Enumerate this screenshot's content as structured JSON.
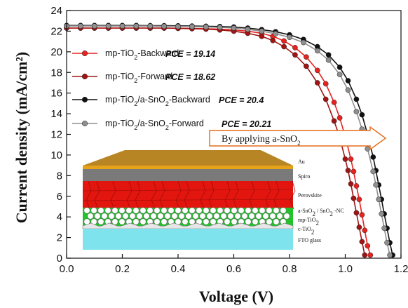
{
  "chart_data": {
    "type": "line",
    "xlabel": "Voltage (V)",
    "ylabel": "Current density (mA/cm²)",
    "xlim": [
      0.0,
      1.2
    ],
    "ylim": [
      0,
      24
    ],
    "x_ticks": [
      "0.0",
      "0.2",
      "0.4",
      "0.6",
      "0.8",
      "1.0",
      "1.2"
    ],
    "y_ticks": [
      "0",
      "2",
      "4",
      "6",
      "8",
      "10",
      "12",
      "14",
      "16",
      "18",
      "20",
      "22",
      "24"
    ],
    "legend_position": "upper-left",
    "series": [
      {
        "name": "mp-TiO2-Backward",
        "pce": "PCE = 19.14",
        "color": "#e8231f",
        "x": [
          0.0,
          0.05,
          0.1,
          0.15,
          0.2,
          0.25,
          0.3,
          0.35,
          0.4,
          0.45,
          0.5,
          0.55,
          0.6,
          0.65,
          0.7,
          0.74,
          0.78,
          0.82,
          0.86,
          0.9,
          0.93,
          0.96,
          0.98,
          1.0,
          1.02,
          1.03,
          1.04,
          1.05,
          1.06,
          1.07,
          1.08,
          1.09
        ],
        "y": [
          22.3,
          22.3,
          22.3,
          22.3,
          22.3,
          22.3,
          22.3,
          22.3,
          22.28,
          22.26,
          22.24,
          22.2,
          22.12,
          22.0,
          21.8,
          21.5,
          21.05,
          20.4,
          19.5,
          18.2,
          16.9,
          15.1,
          13.6,
          11.8,
          9.6,
          8.4,
          7.0,
          5.7,
          4.2,
          2.7,
          1.2,
          0.3
        ]
      },
      {
        "name": "mp-TiO2-Forward",
        "pce": "PCE = 18.62",
        "color": "#a01414",
        "x": [
          0.0,
          0.05,
          0.1,
          0.15,
          0.2,
          0.25,
          0.3,
          0.35,
          0.4,
          0.45,
          0.5,
          0.55,
          0.6,
          0.65,
          0.7,
          0.74,
          0.78,
          0.82,
          0.86,
          0.9,
          0.93,
          0.96,
          0.98,
          1.0,
          1.01,
          1.02,
          1.03,
          1.04,
          1.05,
          1.06,
          1.07
        ],
        "y": [
          22.3,
          22.3,
          22.3,
          22.3,
          22.3,
          22.3,
          22.3,
          22.3,
          22.27,
          22.24,
          22.2,
          22.12,
          22.0,
          21.8,
          21.5,
          21.1,
          20.5,
          19.7,
          18.6,
          17.0,
          15.4,
          13.3,
          11.7,
          9.6,
          8.5,
          7.2,
          5.8,
          4.4,
          3.0,
          1.6,
          0.3
        ]
      },
      {
        "name": "mp-TiO2/a-SnO2-Backward",
        "pce": "PCE = 20.4",
        "color": "#111111",
        "x": [
          0.0,
          0.05,
          0.1,
          0.15,
          0.2,
          0.25,
          0.3,
          0.35,
          0.4,
          0.45,
          0.5,
          0.55,
          0.6,
          0.65,
          0.7,
          0.75,
          0.8,
          0.85,
          0.9,
          0.94,
          0.98,
          1.01,
          1.04,
          1.06,
          1.08,
          1.1,
          1.11,
          1.12,
          1.13,
          1.14,
          1.15,
          1.16,
          1.17
        ],
        "y": [
          22.55,
          22.55,
          22.55,
          22.55,
          22.55,
          22.55,
          22.54,
          22.53,
          22.52,
          22.5,
          22.48,
          22.45,
          22.4,
          22.3,
          22.15,
          21.95,
          21.65,
          21.2,
          20.5,
          19.7,
          18.5,
          17.2,
          15.4,
          13.9,
          12.0,
          9.8,
          8.5,
          7.1,
          5.7,
          4.3,
          2.9,
          1.5,
          0.3
        ]
      },
      {
        "name": "mp-TiO2/a-SnO2-Forward",
        "pce": "PCE = 20.21",
        "color": "#8f8f8f",
        "x": [
          0.0,
          0.05,
          0.1,
          0.15,
          0.2,
          0.25,
          0.3,
          0.35,
          0.4,
          0.45,
          0.5,
          0.55,
          0.6,
          0.65,
          0.7,
          0.75,
          0.8,
          0.85,
          0.9,
          0.94,
          0.98,
          1.01,
          1.04,
          1.06,
          1.08,
          1.1,
          1.11,
          1.12,
          1.13,
          1.14,
          1.15,
          1.16
        ],
        "y": [
          22.5,
          22.5,
          22.5,
          22.5,
          22.5,
          22.5,
          22.49,
          22.48,
          22.46,
          22.44,
          22.41,
          22.37,
          22.3,
          22.18,
          22.0,
          21.75,
          21.4,
          20.9,
          20.1,
          19.2,
          17.8,
          16.3,
          14.2,
          12.5,
          10.6,
          8.4,
          7.1,
          5.7,
          4.3,
          2.9,
          1.5,
          0.3
        ]
      }
    ],
    "annotation": "By applying a-SnO2",
    "inset": {
      "layers": [
        "Au",
        "Spiro",
        "Perovskite",
        "a-SnO2 / SnO2 -NC",
        "mp-TiO2",
        "c-TiO2",
        "FTO glass"
      ]
    }
  }
}
